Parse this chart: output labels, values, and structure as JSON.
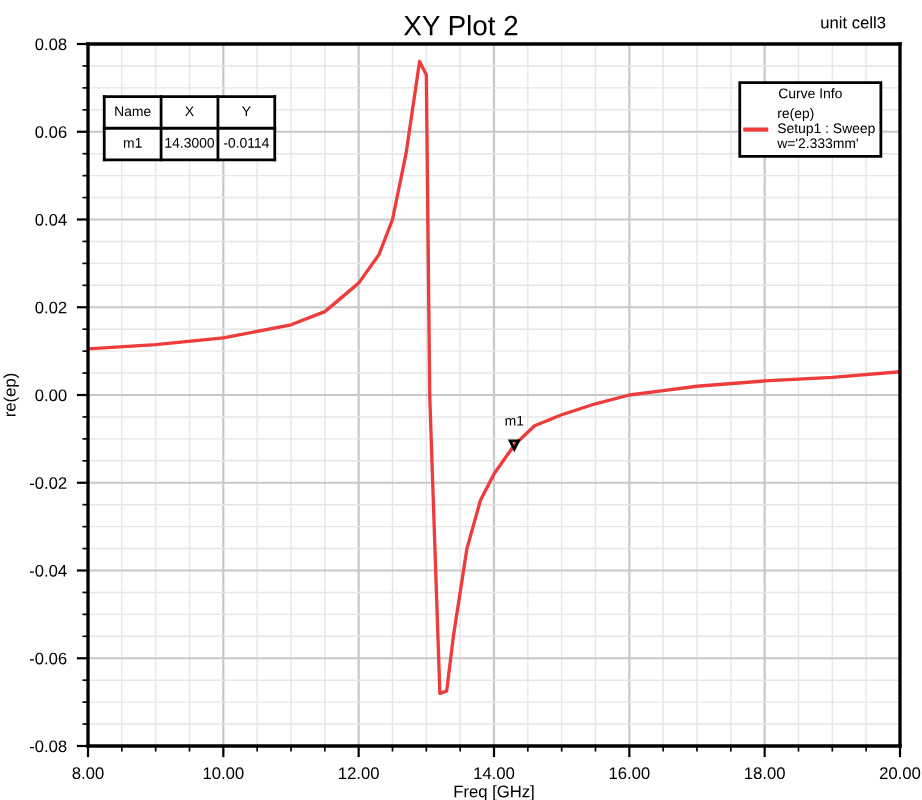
{
  "chart_data": {
    "type": "line",
    "title": "XY Plot 2",
    "subtitle": "unit cell3",
    "xlabel": "Freq [GHz]",
    "ylabel": "re(ep)",
    "legend_title": "Curve Info",
    "x": [
      8.0,
      9.0,
      10.0,
      11.0,
      11.5,
      12.0,
      12.3,
      12.5,
      12.7,
      12.9,
      13.0,
      13.05,
      13.2,
      13.3,
      13.4,
      13.6,
      13.8,
      14.0,
      14.3,
      14.6,
      15.0,
      15.5,
      16.0,
      16.5,
      17.0,
      18.0,
      19.0,
      20.0
    ],
    "series": [
      {
        "name": "re(ep)\nSetup1 : Sweep\nw='2.333mm'",
        "color": "#ee3b3b",
        "values": [
          0.0105,
          0.0115,
          0.013,
          0.016,
          0.019,
          0.0255,
          0.032,
          0.04,
          0.055,
          0.076,
          0.073,
          0.0,
          -0.068,
          -0.0675,
          -0.055,
          -0.035,
          -0.024,
          -0.018,
          -0.0114,
          -0.007,
          -0.0045,
          -0.002,
          0.0,
          0.001,
          0.002,
          0.0032,
          0.004,
          0.0053
        ]
      }
    ],
    "xlim": [
      8,
      20
    ],
    "ylim": [
      -0.08,
      0.08
    ],
    "xticks": [
      {
        "value": 8,
        "label": "8.00"
      },
      {
        "value": 10,
        "label": "10.00"
      },
      {
        "value": 12,
        "label": "12.00"
      },
      {
        "value": 14,
        "label": "14.00"
      },
      {
        "value": 16,
        "label": "16.00"
      },
      {
        "value": 18,
        "label": "18.00"
      },
      {
        "value": 20,
        "label": "20.00"
      }
    ],
    "yticks": [
      {
        "value": -0.08,
        "label": "-0.08"
      },
      {
        "value": -0.06,
        "label": "-0.06"
      },
      {
        "value": -0.04,
        "label": "-0.04"
      },
      {
        "value": -0.02,
        "label": "-0.02"
      },
      {
        "value": 0,
        "label": "0.00"
      },
      {
        "value": 0.02,
        "label": "0.02"
      },
      {
        "value": 0.04,
        "label": "0.04"
      },
      {
        "value": 0.06,
        "label": "0.06"
      },
      {
        "value": 0.08,
        "label": "0.08"
      }
    ],
    "grid": true,
    "legend": "top right",
    "marker": "none",
    "line_style": "solid",
    "annotations": [
      {
        "text": "m1",
        "x": 14.3,
        "y": -0.0114
      },
      "Name",
      "X",
      "Y",
      "m1",
      "14.3000",
      "-0.0114"
    ]
  }
}
